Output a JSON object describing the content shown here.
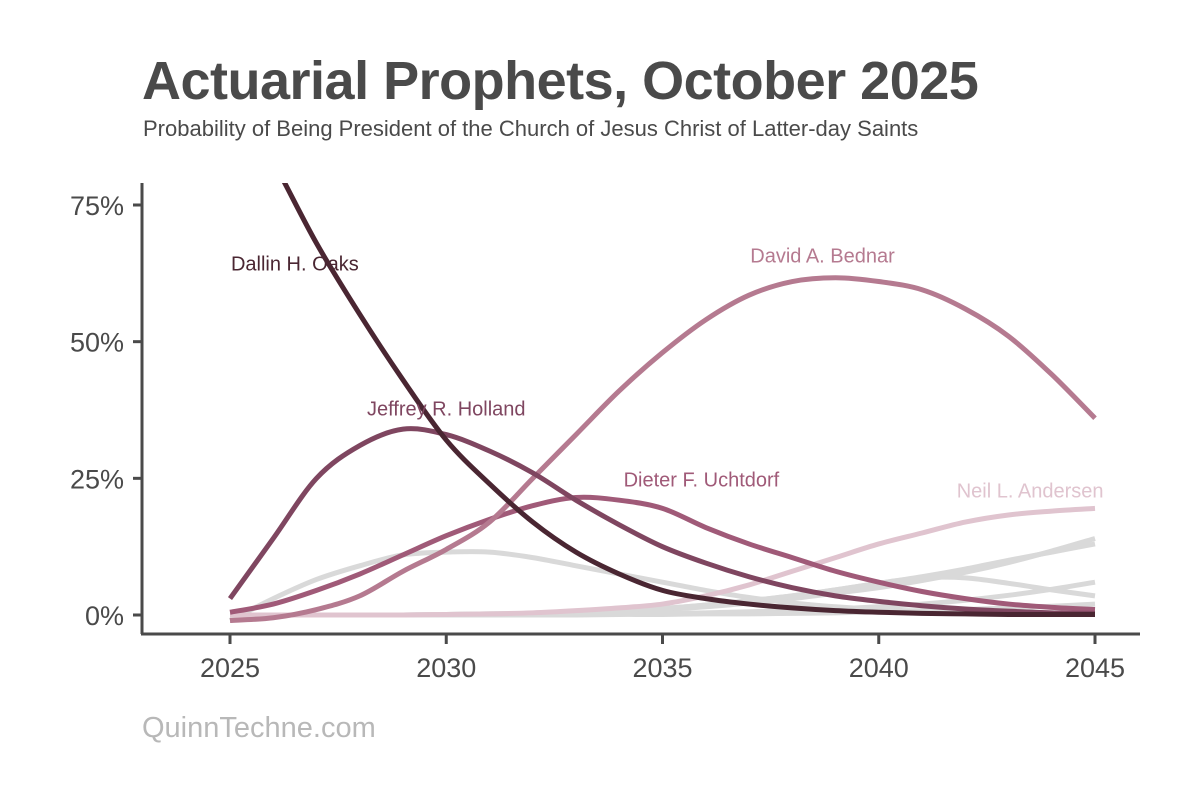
{
  "title": "Actuarial Prophets, October 2025",
  "subtitle": "Probability of Being President of the Church of Jesus Christ of Latter-day Saints",
  "credit": "QuinnTechne.com",
  "chart_data": {
    "type": "line",
    "title": "Actuarial Prophets, October 2025",
    "subtitle": "Probability of Being President of the Church of Jesus Christ of Latter-day Saints",
    "xlabel": "",
    "ylabel": "",
    "xlim": [
      2025,
      2045
    ],
    "ylim": [
      0,
      75
    ],
    "x_ticks": [
      2025,
      2030,
      2035,
      2040,
      2045
    ],
    "x_tick_labels": [
      "2025",
      "2030",
      "2035",
      "2040",
      "2045"
    ],
    "y_ticks": [
      0,
      25,
      50,
      75
    ],
    "y_tick_labels": [
      "0%",
      "25%",
      "50%",
      "75%"
    ],
    "grid": false,
    "x": [
      2025,
      2026,
      2027,
      2028,
      2029,
      2030,
      2031,
      2032,
      2033,
      2034,
      2035,
      2036,
      2037,
      2038,
      2039,
      2040,
      2041,
      2042,
      2043,
      2044,
      2045
    ],
    "series": [
      {
        "name": "gray-a",
        "label": "",
        "color": "#d9d9d9",
        "values": [
          -1,
          3,
          6.5,
          9,
          11,
          11.5,
          11.5,
          10.5,
          9,
          7.5,
          6,
          4.5,
          3.2,
          2.2,
          1.5,
          1,
          0.7,
          0.5,
          0.3,
          0.2,
          0.2
        ]
      },
      {
        "name": "gray-b",
        "label": "",
        "color": "#d9d9d9",
        "values": [
          0,
          0,
          0,
          0,
          0,
          0,
          0.1,
          0.2,
          0.4,
          0.6,
          1,
          1.5,
          2.2,
          3,
          4,
          5,
          6.3,
          7.8,
          9.6,
          11.7,
          14
        ]
      },
      {
        "name": "gray-c",
        "label": "",
        "color": "#d9d9d9",
        "values": [
          0,
          0,
          0,
          0,
          0,
          0.1,
          0.2,
          0.3,
          0.5,
          0.8,
          1.2,
          1.8,
          2.6,
          3.5,
          4.6,
          5.8,
          7,
          8.4,
          10,
          11.5,
          13
        ]
      },
      {
        "name": "gray-d",
        "label": "",
        "color": "#d9d9d9",
        "values": [
          0,
          0,
          0,
          0,
          0,
          0.1,
          0.2,
          0.3,
          0.5,
          0.8,
          1.2,
          1.8,
          2.6,
          3.5,
          4.6,
          5.8,
          6.8,
          6.8,
          5.8,
          4.6,
          3.5
        ]
      },
      {
        "name": "gray-e",
        "label": "",
        "color": "#d9d9d9",
        "values": [
          0,
          0,
          0,
          0,
          0,
          0,
          0,
          0.1,
          0.1,
          0.2,
          0.3,
          0.4,
          0.6,
          0.8,
          1.1,
          1.5,
          2,
          2.7,
          3.6,
          4.7,
          6
        ]
      },
      {
        "name": "gray-f",
        "label": "",
        "color": "#d9d9d9",
        "values": [
          0,
          0,
          0,
          0,
          0,
          0,
          0,
          0,
          0,
          0.1,
          0.1,
          0.2,
          0.2,
          0.3,
          0.4,
          0.6,
          0.8,
          1,
          1.3,
          1.6,
          2
        ]
      },
      {
        "name": "Neil L. Andersen",
        "label": "Neil L. Andersen",
        "color": "#e0c4cf",
        "values": [
          0,
          0,
          0,
          0,
          0,
          0.1,
          0.2,
          0.4,
          0.8,
          1.3,
          2,
          3.5,
          5.5,
          8,
          10.5,
          13,
          15,
          17,
          18.3,
          19,
          19.5
        ]
      },
      {
        "name": "Dieter F. Uchtdorf",
        "label": "Dieter F. Uchtdorf",
        "color": "#a05a78",
        "values": [
          0.5,
          2,
          4.5,
          7.5,
          11,
          14.5,
          17.5,
          20,
          21.5,
          21,
          19.5,
          16,
          13,
          10.5,
          8,
          6,
          4.3,
          3,
          2,
          1.4,
          1
        ]
      },
      {
        "name": "David A. Bednar",
        "label": "David A. Bednar",
        "color": "#b57a90",
        "values": [
          -1,
          -0.5,
          1,
          3.5,
          8,
          12,
          17,
          25,
          33,
          41,
          48,
          54,
          58.5,
          61,
          61.7,
          61,
          59.5,
          56,
          51,
          44,
          36
        ]
      },
      {
        "name": "Jeffrey R. Holland",
        "label": "Jeffrey R. Holland",
        "color": "#7f4660",
        "values": [
          3,
          14,
          25,
          31,
          34,
          33,
          30,
          26,
          21,
          16.5,
          12.5,
          9.5,
          7,
          5,
          3.5,
          2.5,
          1.7,
          1.1,
          0.7,
          0.4,
          0.3
        ]
      },
      {
        "name": "Dallin H. Oaks",
        "label": "Dallin H. Oaks",
        "color": "#4a2632",
        "values": [
          97,
          83,
          68,
          55,
          43,
          32,
          24,
          17,
          11.5,
          7.5,
          4.5,
          3,
          2,
          1.3,
          0.8,
          0.5,
          0.3,
          0.2,
          0.1,
          0.1,
          0.1
        ]
      }
    ],
    "annotations": [
      {
        "text": "Dallin H. Oaks",
        "x": 2026.5,
        "y": 63,
        "color": "#4a2632"
      },
      {
        "text": "Jeffrey R. Holland",
        "x": 2030.0,
        "y": 36.5,
        "color": "#7f4660"
      },
      {
        "text": "David A. Bednar",
        "x": 2038.7,
        "y": 64.5,
        "color": "#b57a90"
      },
      {
        "text": "Dieter F. Uchtdorf",
        "x": 2035.9,
        "y": 23.5,
        "color": "#a05a78"
      },
      {
        "text": "Neil L. Andersen",
        "x": 2043.5,
        "y": 21.5,
        "color": "#e0c4cf"
      }
    ]
  }
}
